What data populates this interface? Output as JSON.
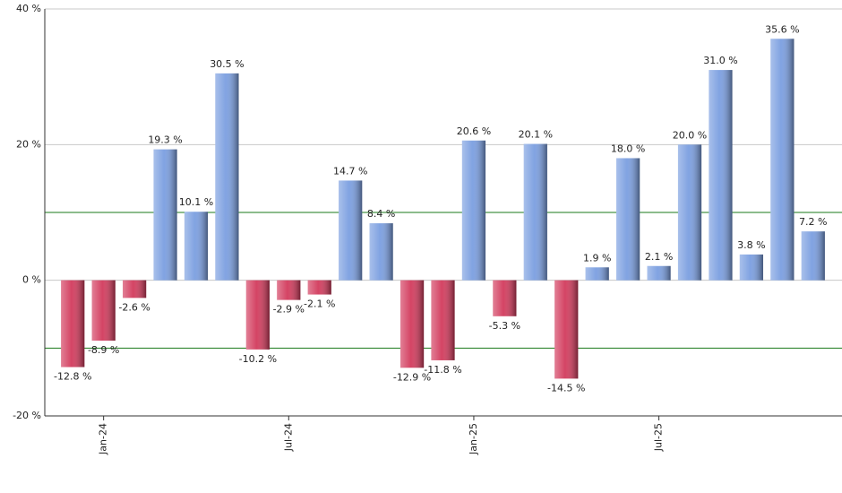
{
  "chart_data": {
    "type": "bar",
    "categories": [
      null,
      "Jan-24",
      null,
      null,
      null,
      null,
      null,
      "Jul-24",
      null,
      null,
      null,
      null,
      null,
      "Jan-25",
      null,
      null,
      null,
      null,
      null,
      "Jul-25",
      null,
      null,
      null,
      null,
      null
    ],
    "values": [
      -12.8,
      -8.9,
      -2.6,
      19.3,
      10.1,
      30.5,
      -10.2,
      -2.9,
      -2.1,
      14.7,
      8.4,
      -12.9,
      -11.8,
      20.6,
      -5.3,
      20.1,
      -14.5,
      1.9,
      18.0,
      2.1,
      20.0,
      31.0,
      3.8,
      35.6,
      7.2
    ],
    "value_labels": [
      "-12.8 %",
      "-8.9 %",
      "-2.6 %",
      "19.3 %",
      "10.1 %",
      "30.5 %",
      "-10.2 %",
      "-2.9 %",
      "-2.1 %",
      "14.7 %",
      "8.4 %",
      "-12.9 %",
      "-11.8 %",
      "20.6 %",
      "-5.3 %",
      "20.1 %",
      "-14.5 %",
      "1.9 %",
      "18.0 %",
      "2.1 %",
      "20.0 %",
      "31.0 %",
      "3.8 %",
      "35.6 %",
      "7.2 %"
    ],
    "color_positive": "#7a9ee0",
    "color_negative": "#d23a5c",
    "ylim": [
      -20,
      40
    ],
    "yticks": [
      {
        "value": -20,
        "label": "-20 %"
      },
      {
        "value": 0,
        "label": "0 %"
      },
      {
        "value": 20,
        "label": "20 %"
      },
      {
        "value": 40,
        "label": "40 %"
      }
    ],
    "reference_lines": [
      10,
      -10
    ],
    "reference_color": "#1a7a1a",
    "grid": true
  }
}
